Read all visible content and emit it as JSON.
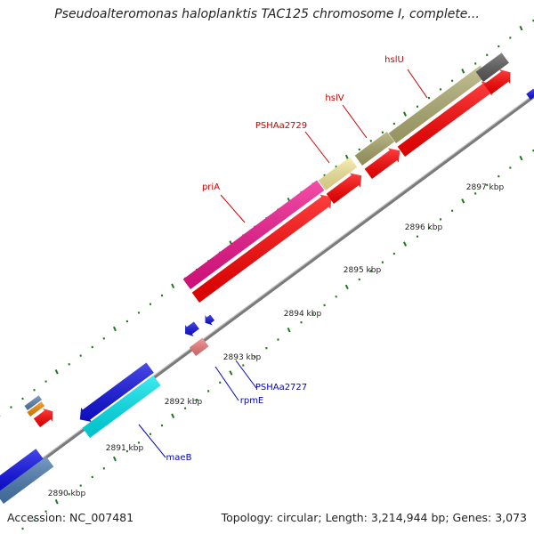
{
  "title": "Pseudoalteromonas haloplanktis TAC125 chromosome I, complete...",
  "footer": {
    "accession": "Accession: NC_007481",
    "summary": "Topology: circular; Length: 3,214,944 bp; Genes: 3,073"
  },
  "ruler": [
    {
      "label": "2890 kbp"
    },
    {
      "label": "2891 kbp"
    },
    {
      "label": "2892 kbp"
    },
    {
      "label": "2893 kbp"
    },
    {
      "label": "2894 kbp"
    },
    {
      "label": "2895 kbp"
    },
    {
      "label": "2896 kbp"
    },
    {
      "label": "2897 kbp"
    }
  ],
  "gene_labels": [
    {
      "name": "hslU",
      "color": "#cc0000"
    },
    {
      "name": "hslV",
      "color": "#cc0000"
    },
    {
      "name": "PSHAa2729",
      "color": "#cc0000"
    },
    {
      "name": "priA",
      "color": "#cc0000"
    },
    {
      "name": "PSHAa2727",
      "color": "#0000cc"
    },
    {
      "name": "rpmE",
      "color": "#0000cc"
    },
    {
      "name": "maeB",
      "color": "#0000cc"
    }
  ],
  "colors": {
    "backbone": "#8c8c8c",
    "cds": "#ff0000",
    "tick": "#1a7a1a"
  }
}
